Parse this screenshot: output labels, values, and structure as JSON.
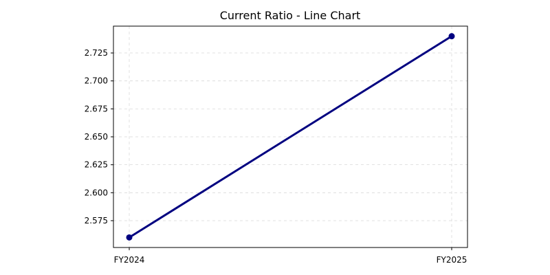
{
  "chart_data": {
    "type": "line",
    "title": "Current Ratio - Line Chart",
    "xlabel": "",
    "ylabel": "",
    "categories": [
      "FY2024",
      "FY2025"
    ],
    "series": [
      {
        "values": [
          2.56,
          2.74
        ],
        "color": "#000080",
        "marker": "circle"
      }
    ],
    "ylim": [
      2.551,
      2.749
    ],
    "yticks": [
      2.575,
      2.6,
      2.625,
      2.65,
      2.675,
      2.7,
      2.725
    ],
    "ytick_labels": [
      "2.575",
      "2.600",
      "2.625",
      "2.650",
      "2.675",
      "2.700",
      "2.725"
    ],
    "grid": true,
    "legend": "none"
  }
}
